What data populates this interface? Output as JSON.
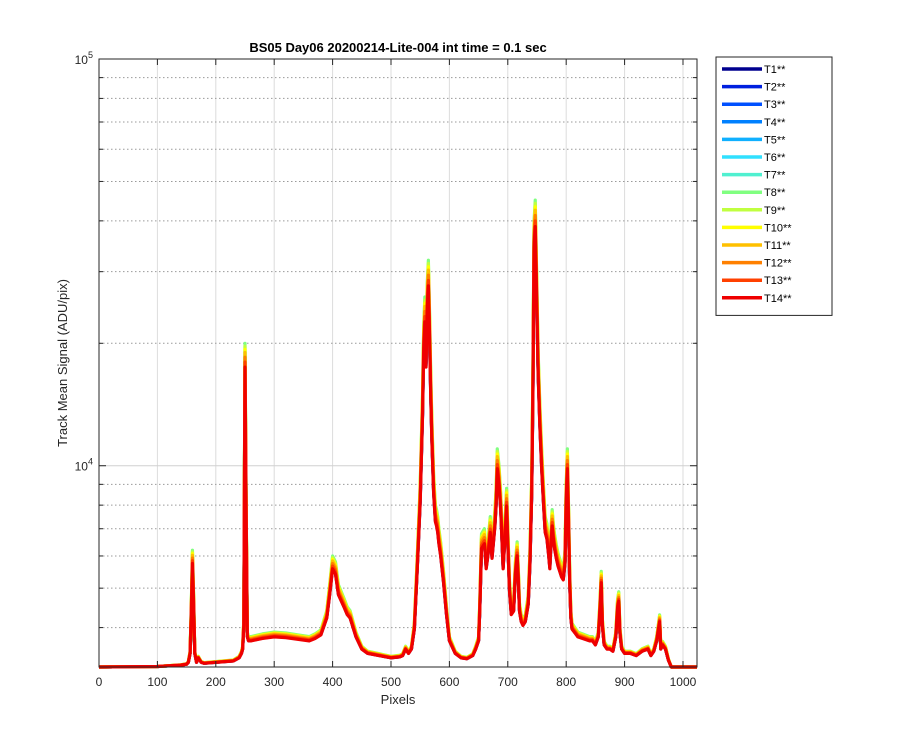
{
  "chart_data": {
    "type": "line",
    "title": "BS05 Day06 20200214-Lite-004 int time = 0.1 sec",
    "xlabel": "Pixels",
    "ylabel": "Track Mean Signal (ADU/pix)",
    "xlim": [
      0,
      1024
    ],
    "ylim": [
      3200,
      100000
    ],
    "yscale": "log",
    "grid": true,
    "legend_position": "outside-right-top",
    "x_ticks": [
      {
        "value": 0,
        "label": "0"
      },
      {
        "value": 100,
        "label": "100"
      },
      {
        "value": 200,
        "label": "200"
      },
      {
        "value": 300,
        "label": "300"
      },
      {
        "value": 400,
        "label": "400"
      },
      {
        "value": 500,
        "label": "500"
      },
      {
        "value": 600,
        "label": "600"
      },
      {
        "value": 700,
        "label": "700"
      },
      {
        "value": 800,
        "label": "800"
      },
      {
        "value": 900,
        "label": "900"
      },
      {
        "value": 1000,
        "label": "1000"
      }
    ],
    "y_major_ticks": [
      {
        "value": 10000,
        "base": "10",
        "exp": "4"
      },
      {
        "value": 100000,
        "base": "10",
        "exp": "5"
      }
    ],
    "base_profile": {
      "x": [
        0,
        100,
        140,
        150,
        153,
        156,
        158,
        160,
        162,
        164,
        167,
        170,
        175,
        180,
        200,
        230,
        240,
        244,
        246,
        248,
        250,
        252,
        254,
        256,
        260,
        280,
        300,
        320,
        340,
        360,
        370,
        380,
        390,
        395,
        400,
        405,
        410,
        420,
        425,
        430,
        440,
        450,
        460,
        480,
        500,
        515,
        520,
        525,
        530,
        535,
        540,
        545,
        550,
        554,
        556,
        558,
        560,
        562,
        564,
        566,
        568,
        570,
        573,
        576,
        578,
        580,
        582,
        585,
        590,
        595,
        600,
        610,
        620,
        630,
        640,
        645,
        650,
        652,
        655,
        660,
        663,
        666,
        670,
        673,
        676,
        678,
        680,
        682,
        685,
        688,
        692,
        695,
        698,
        700,
        703,
        706,
        710,
        713,
        716,
        718,
        720,
        723,
        726,
        730,
        735,
        738,
        741,
        743,
        745,
        747,
        749,
        752,
        755,
        758,
        761,
        764,
        767,
        770,
        772,
        774,
        776,
        778,
        780,
        783,
        786,
        789,
        792,
        795,
        798,
        800,
        802,
        804,
        806,
        808,
        810,
        815,
        820,
        830,
        840,
        845,
        850,
        855,
        858,
        860,
        862,
        865,
        870,
        875,
        880,
        885,
        888,
        890,
        892,
        895,
        900,
        910,
        920,
        930,
        940,
        945,
        950,
        955,
        960,
        962,
        965,
        970,
        975,
        980,
        990,
        1000,
        1010,
        1024
      ],
      "y": [
        3200,
        3210,
        3240,
        3260,
        3300,
        3500,
        4500,
        6200,
        4800,
        3500,
        3300,
        3400,
        3300,
        3280,
        3300,
        3330,
        3400,
        3500,
        3600,
        4200,
        20000,
        8000,
        3900,
        3800,
        3800,
        3860,
        3900,
        3880,
        3840,
        3800,
        3860,
        3950,
        4400,
        5100,
        6000,
        5800,
        5100,
        4700,
        4500,
        4400,
        3900,
        3600,
        3500,
        3450,
        3400,
        3420,
        3450,
        3600,
        3500,
        3600,
        4100,
        6000,
        9000,
        15000,
        22000,
        26000,
        20000,
        28000,
        32000,
        24000,
        17000,
        13000,
        9500,
        8000,
        7800,
        7500,
        7000,
        6500,
        5500,
        4500,
        3800,
        3500,
        3400,
        3380,
        3450,
        3600,
        3800,
        4600,
        6800,
        7000,
        6000,
        6500,
        7500,
        6400,
        7200,
        7800,
        8800,
        11000,
        10000,
        8500,
        6000,
        7200,
        8800,
        7000,
        5200,
        4500,
        4600,
        5800,
        6500,
        5600,
        4600,
        4300,
        4200,
        4300,
        4800,
        6200,
        9500,
        17000,
        40000,
        45000,
        32000,
        19000,
        14000,
        11000,
        9000,
        7500,
        7200,
        6500,
        6000,
        7000,
        7800,
        7200,
        6800,
        6400,
        6100,
        5900,
        5700,
        5600,
        6200,
        9000,
        11000,
        8000,
        5500,
        4400,
        4100,
        4000,
        3900,
        3850,
        3800,
        3800,
        3700,
        3900,
        4700,
        5500,
        4200,
        3700,
        3600,
        3600,
        3550,
        3900,
        4700,
        4900,
        4000,
        3600,
        3500,
        3500,
        3450,
        3550,
        3600,
        3450,
        3550,
        3800,
        4300,
        3600,
        3700,
        3600,
        3350,
        3200,
        3200,
        3200,
        3200,
        3200
      ]
    },
    "series": [
      {
        "name": "T1**",
        "color": "#00008f",
        "scale": 0.86
      },
      {
        "name": "T2**",
        "color": "#0020df",
        "scale": 0.87
      },
      {
        "name": "T3**",
        "color": "#0050ff",
        "scale": 0.88
      },
      {
        "name": "T4**",
        "color": "#0080ff",
        "scale": 0.89
      },
      {
        "name": "T5**",
        "color": "#10b0ff",
        "scale": 0.9
      },
      {
        "name": "T6**",
        "color": "#30e0ff",
        "scale": 0.92
      },
      {
        "name": "T7**",
        "color": "#50f0d0",
        "scale": 0.95
      },
      {
        "name": "T8**",
        "color": "#80ff80",
        "scale": 1.0
      },
      {
        "name": "T9**",
        "color": "#c0ff40",
        "scale": 0.98
      },
      {
        "name": "T10**",
        "color": "#ffff00",
        "scale": 0.96
      },
      {
        "name": "T11**",
        "color": "#ffc000",
        "scale": 0.94
      },
      {
        "name": "T12**",
        "color": "#ff8000",
        "scale": 0.91
      },
      {
        "name": "T13**",
        "color": "#ff4000",
        "scale": 0.88
      },
      {
        "name": "T14**",
        "color": "#ef0000",
        "scale": 0.85
      }
    ]
  }
}
